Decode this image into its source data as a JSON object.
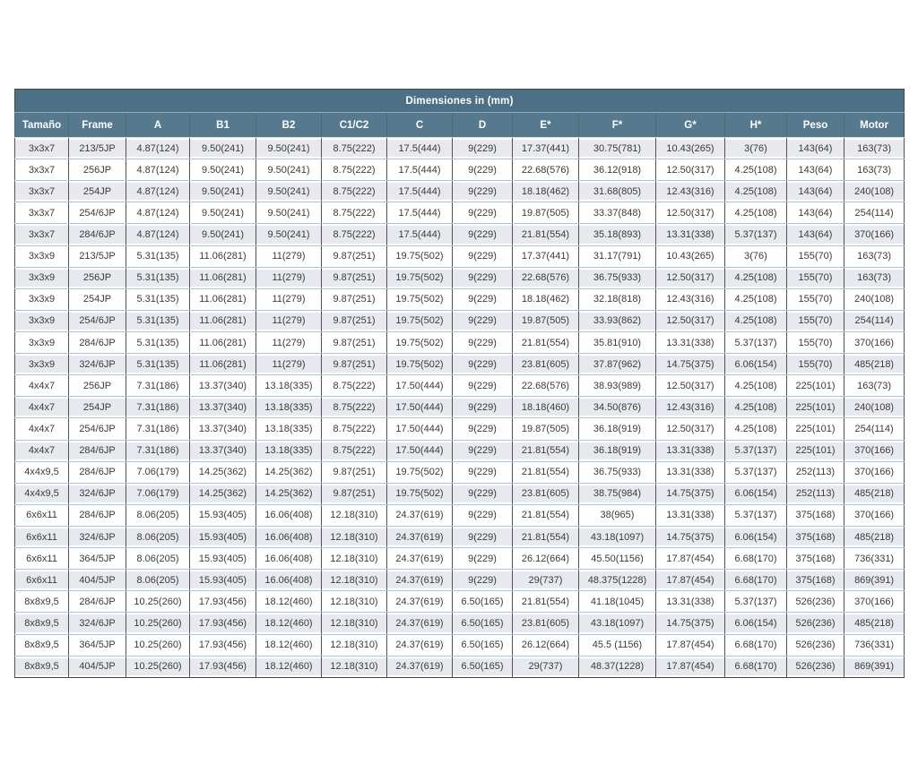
{
  "title": "Dimensiones in (mm)",
  "colors": {
    "title_band": "#4d7086",
    "header_band": "#56798e",
    "row_alt": "#e7e9ef",
    "row": "#ffffff",
    "grid_dark": "#525252",
    "grid_light": "#abc5d5",
    "header_text": "#ffffff",
    "body_text": "#3a3a3a"
  },
  "table": {
    "columns": [
      "Tamaño",
      "Frame",
      "A",
      "B1",
      "B2",
      "C1/C2",
      "C",
      "D",
      "E*",
      "F*",
      "G*",
      "H*",
      "Peso",
      "Motor"
    ],
    "rows": [
      [
        "3x3x7",
        "213/5JP",
        "4.87(124)",
        "9.50(241)",
        "9.50(241)",
        "8.75(222)",
        "17.5(444)",
        "9(229)",
        "17.37(441)",
        "30.75(781)",
        "10.43(265)",
        "3(76)",
        "143(64)",
        "163(73)"
      ],
      [
        "3x3x7",
        "256JP",
        "4.87(124)",
        "9.50(241)",
        "9.50(241)",
        "8.75(222)",
        "17.5(444)",
        "9(229)",
        "22.68(576)",
        "36.12(918)",
        "12.50(317)",
        "4.25(108)",
        "143(64)",
        "163(73)"
      ],
      [
        "3x3x7",
        "254JP",
        "4.87(124)",
        "9.50(241)",
        "9.50(241)",
        "8.75(222)",
        "17.5(444)",
        "9(229)",
        "18.18(462)",
        "31.68(805)",
        "12.43(316)",
        "4.25(108)",
        "143(64)",
        "240(108)"
      ],
      [
        "3x3x7",
        "254/6JP",
        "4.87(124)",
        "9.50(241)",
        "9.50(241)",
        "8.75(222)",
        "17.5(444)",
        "9(229)",
        "19.87(505)",
        "33.37(848)",
        "12.50(317)",
        "4.25(108)",
        "143(64)",
        "254(114)"
      ],
      [
        "3x3x7",
        "284/6JP",
        "4.87(124)",
        "9.50(241)",
        "9.50(241)",
        "8.75(222)",
        "17.5(444)",
        "9(229)",
        "21.81(554)",
        "35.18(893)",
        "13.31(338)",
        "5.37(137)",
        "143(64)",
        "370(166)"
      ],
      [
        "3x3x9",
        "213/5JP",
        "5.31(135)",
        "11.06(281)",
        "11(279)",
        "9.87(251)",
        "19.75(502)",
        "9(229)",
        "17.37(441)",
        "31.17(791)",
        "10.43(265)",
        "3(76)",
        "155(70)",
        "163(73)"
      ],
      [
        "3x3x9",
        "256JP",
        "5.31(135)",
        "11.06(281)",
        "11(279)",
        "9.87(251)",
        "19.75(502)",
        "9(229)",
        "22.68(576)",
        "36.75(933)",
        "12.50(317)",
        "4.25(108)",
        "155(70)",
        "163(73)"
      ],
      [
        "3x3x9",
        "254JP",
        "5.31(135)",
        "11.06(281)",
        "11(279)",
        "9.87(251)",
        "19.75(502)",
        "9(229)",
        "18.18(462)",
        "32.18(818)",
        "12.43(316)",
        "4.25(108)",
        "155(70)",
        "240(108)"
      ],
      [
        "3x3x9",
        "254/6JP",
        "5.31(135)",
        "11.06(281)",
        "11(279)",
        "9.87(251)",
        "19.75(502)",
        "9(229)",
        "19.87(505)",
        "33.93(862)",
        "12.50(317)",
        "4.25(108)",
        "155(70)",
        "254(114)"
      ],
      [
        "3x3x9",
        "284/6JP",
        "5.31(135)",
        "11.06(281)",
        "11(279)",
        "9.87(251)",
        "19.75(502)",
        "9(229)",
        "21.81(554)",
        "35.81(910)",
        "13.31(338)",
        "5.37(137)",
        "155(70)",
        "370(166)"
      ],
      [
        "3x3x9",
        "324/6JP",
        "5.31(135)",
        "11.06(281)",
        "11(279)",
        "9.87(251)",
        "19.75(502)",
        "9(229)",
        "23.81(605)",
        "37.87(962)",
        "14.75(375)",
        "6.06(154)",
        "155(70)",
        "485(218)"
      ],
      [
        "4x4x7",
        "256JP",
        "7.31(186)",
        "13.37(340)",
        "13.18(335)",
        "8.75(222)",
        "17.50(444)",
        "9(229)",
        "22.68(576)",
        "38.93(989)",
        "12.50(317)",
        "4.25(108)",
        "225(101)",
        "163(73)"
      ],
      [
        "4x4x7",
        "254JP",
        "7.31(186)",
        "13.37(340)",
        "13.18(335)",
        "8.75(222)",
        "17.50(444)",
        "9(229)",
        "18.18(460)",
        "34.50(876)",
        "12.43(316)",
        "4.25(108)",
        "225(101)",
        "240(108)"
      ],
      [
        "4x4x7",
        "254/6JP",
        "7.31(186)",
        "13.37(340)",
        "13.18(335)",
        "8.75(222)",
        "17.50(444)",
        "9(229)",
        "19.87(505)",
        "36.18(919)",
        "12.50(317)",
        "4.25(108)",
        "225(101)",
        "254(114)"
      ],
      [
        "4x4x7",
        "284/6JP",
        "7.31(186)",
        "13.37(340)",
        "13.18(335)",
        "8.75(222)",
        "17.50(444)",
        "9(229)",
        "21.81(554)",
        "36.18(919)",
        "13.31(338)",
        "5.37(137)",
        "225(101)",
        "370(166)"
      ],
      [
        "4x4x9,5",
        "284/6JP",
        "7.06(179)",
        "14.25(362)",
        "14.25(362)",
        "9.87(251)",
        "19.75(502)",
        "9(229)",
        "21.81(554)",
        "36.75(933)",
        "13.31(338)",
        "5.37(137)",
        "252(113)",
        "370(166)"
      ],
      [
        "4x4x9,5",
        "324/6JP",
        "7.06(179)",
        "14.25(362)",
        "14.25(362)",
        "9.87(251)",
        "19.75(502)",
        "9(229)",
        "23.81(605)",
        "38.75(984)",
        "14.75(375)",
        "6.06(154)",
        "252(113)",
        "485(218)"
      ],
      [
        "6x6x11",
        "284/6JP",
        "8.06(205)",
        "15.93(405)",
        "16.06(408)",
        "12.18(310)",
        "24.37(619)",
        "9(229)",
        "21.81(554)",
        "38(965)",
        "13.31(338)",
        "5.37(137)",
        "375(168)",
        "370(166)"
      ],
      [
        "6x6x11",
        "324/6JP",
        "8.06(205)",
        "15.93(405)",
        "16.06(408)",
        "12.18(310)",
        "24.37(619)",
        "9(229)",
        "21.81(554)",
        "43.18(1097)",
        "14.75(375)",
        "6.06(154)",
        "375(168)",
        "485(218)"
      ],
      [
        "6x6x11",
        "364/5JP",
        "8.06(205)",
        "15.93(405)",
        "16.06(408)",
        "12.18(310)",
        "24.37(619)",
        "9(229)",
        "26.12(664)",
        "45.50(1156)",
        "17.87(454)",
        "6.68(170)",
        "375(168)",
        "736(331)"
      ],
      [
        "6x6x11",
        "404/5JP",
        "8.06(205)",
        "15.93(405)",
        "16.06(408)",
        "12.18(310)",
        "24.37(619)",
        "9(229)",
        "29(737)",
        "48.375(1228)",
        "17.87(454)",
        "6.68(170)",
        "375(168)",
        "869(391)"
      ],
      [
        "8x8x9,5",
        "284/6JP",
        "10.25(260)",
        "17.93(456)",
        "18.12(460)",
        "12.18(310)",
        "24.37(619)",
        "6.50(165)",
        "21.81(554)",
        "41.18(1045)",
        "13.31(338)",
        "5.37(137)",
        "526(236)",
        "370(166)"
      ],
      [
        "8x8x9,5",
        "324/6JP",
        "10.25(260)",
        "17.93(456)",
        "18.12(460)",
        "12.18(310)",
        "24.37(619)",
        "6.50(165)",
        "23.81(605)",
        "43.18(1097)",
        "14.75(375)",
        "6.06(154)",
        "526(236)",
        "485(218)"
      ],
      [
        "8x8x9,5",
        "364/5JP",
        "10.25(260)",
        "17.93(456)",
        "18.12(460)",
        "12.18(310)",
        "24.37(619)",
        "6.50(165)",
        "26.12(664)",
        "45.5 (1156)",
        "17.87(454)",
        "6.68(170)",
        "526(236)",
        "736(331)"
      ],
      [
        "8x8x9,5",
        "404/5JP",
        "10.25(260)",
        "17.93(456)",
        "18.12(460)",
        "12.18(310)",
        "24.37(619)",
        "6.50(165)",
        "29(737)",
        "48.37(1228)",
        "17.87(454)",
        "6.68(170)",
        "526(236)",
        "869(391)"
      ]
    ]
  }
}
